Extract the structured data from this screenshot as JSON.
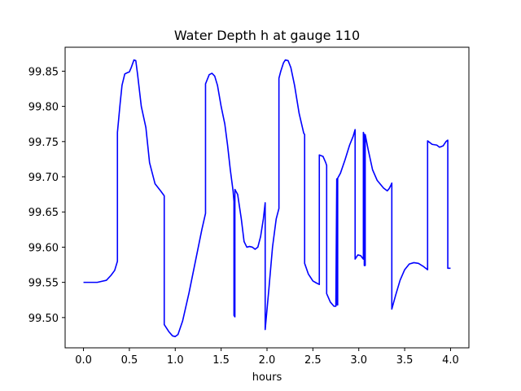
{
  "chart_data": {
    "type": "line",
    "title": "Water Depth h at gauge 110",
    "xlabel": "hours",
    "ylabel": "",
    "xlim": [
      -0.2,
      4.2
    ],
    "ylim": [
      99.457,
      99.884
    ],
    "xticks": [
      0.0,
      0.5,
      1.0,
      1.5,
      2.0,
      2.5,
      3.0,
      3.5,
      4.0
    ],
    "xtick_labels": [
      "0.0",
      "0.5",
      "1.0",
      "1.5",
      "2.0",
      "2.5",
      "3.0",
      "3.5",
      "4.0"
    ],
    "yticks": [
      99.5,
      99.55,
      99.6,
      99.65,
      99.7,
      99.75,
      99.8,
      99.85
    ],
    "ytick_labels": [
      "99.50",
      "99.55",
      "99.60",
      "99.65",
      "99.70",
      "99.75",
      "99.80",
      "99.85"
    ],
    "grid": false,
    "line_color": "#0000ff",
    "series": [
      {
        "x": [
          0.0,
          0.15,
          0.25,
          0.3,
          0.34,
          0.37,
          0.37,
          0.4,
          0.42,
          0.45,
          0.48,
          0.5,
          0.52,
          0.55,
          0.57,
          0.59,
          0.63,
          0.68,
          0.72,
          0.78,
          0.84,
          0.88,
          0.88,
          0.93,
          0.97,
          1.0,
          1.03,
          1.08,
          1.15,
          1.22,
          1.29,
          1.33,
          1.33,
          1.37,
          1.4,
          1.43,
          1.46,
          1.5,
          1.54,
          1.57,
          1.6,
          1.63,
          1.64,
          1.64,
          1.65,
          1.65,
          1.68,
          1.72,
          1.75,
          1.78,
          1.81,
          1.84,
          1.87,
          1.9,
          1.93,
          1.96,
          1.98,
          1.98,
          2.02,
          2.06,
          2.1,
          2.13,
          2.13,
          2.15,
          2.18,
          2.2,
          2.23,
          2.26,
          2.3,
          2.35,
          2.4,
          2.41,
          2.41,
          2.45,
          2.5,
          2.54,
          2.57,
          2.57,
          2.61,
          2.64,
          2.65,
          2.65,
          2.69,
          2.73,
          2.75,
          2.75,
          2.76,
          2.76,
          2.77,
          2.77,
          2.8,
          2.85,
          2.9,
          2.94,
          2.96,
          2.96,
          2.99,
          3.02,
          3.05,
          3.05,
          3.06,
          3.06,
          3.07,
          3.07,
          3.1,
          3.15,
          3.2,
          3.27,
          3.31,
          3.33,
          3.35,
          3.36,
          3.36,
          3.4,
          3.45,
          3.5,
          3.55,
          3.6,
          3.65,
          3.7,
          3.74,
          3.75,
          3.75,
          3.8,
          3.85,
          3.88,
          3.92,
          3.95,
          3.97,
          3.97,
          4.0
        ],
        "y": [
          99.55,
          99.55,
          99.553,
          99.56,
          99.567,
          99.58,
          99.763,
          99.805,
          99.83,
          99.846,
          99.848,
          99.849,
          99.855,
          99.866,
          99.865,
          99.845,
          99.8,
          99.77,
          99.72,
          99.69,
          99.68,
          99.673,
          99.49,
          99.48,
          99.474,
          99.473,
          99.476,
          99.495,
          99.535,
          99.58,
          99.625,
          99.648,
          99.832,
          99.845,
          99.847,
          99.843,
          99.83,
          99.8,
          99.775,
          99.745,
          99.71,
          99.68,
          99.665,
          99.503,
          99.501,
          99.682,
          99.675,
          99.64,
          99.608,
          99.6,
          99.601,
          99.6,
          99.597,
          99.6,
          99.615,
          99.64,
          99.663,
          99.483,
          99.54,
          99.6,
          99.64,
          99.655,
          99.84,
          99.85,
          99.862,
          99.866,
          99.865,
          99.855,
          99.83,
          99.79,
          99.762,
          99.76,
          99.577,
          99.562,
          99.552,
          99.549,
          99.547,
          99.731,
          99.729,
          99.72,
          99.716,
          99.534,
          99.522,
          99.516,
          99.516,
          99.516,
          99.697,
          99.518,
          99.518,
          99.698,
          99.705,
          99.724,
          99.745,
          99.758,
          99.767,
          99.583,
          99.589,
          99.588,
          99.583,
          99.763,
          99.759,
          99.574,
          99.574,
          99.76,
          99.74,
          99.71,
          99.695,
          99.684,
          99.68,
          99.683,
          99.688,
          99.691,
          99.512,
          99.531,
          99.553,
          99.568,
          99.576,
          99.578,
          99.577,
          99.573,
          99.569,
          99.568,
          99.751,
          99.746,
          99.745,
          99.742,
          99.744,
          99.75,
          99.752,
          99.57,
          99.57
        ]
      }
    ]
  }
}
